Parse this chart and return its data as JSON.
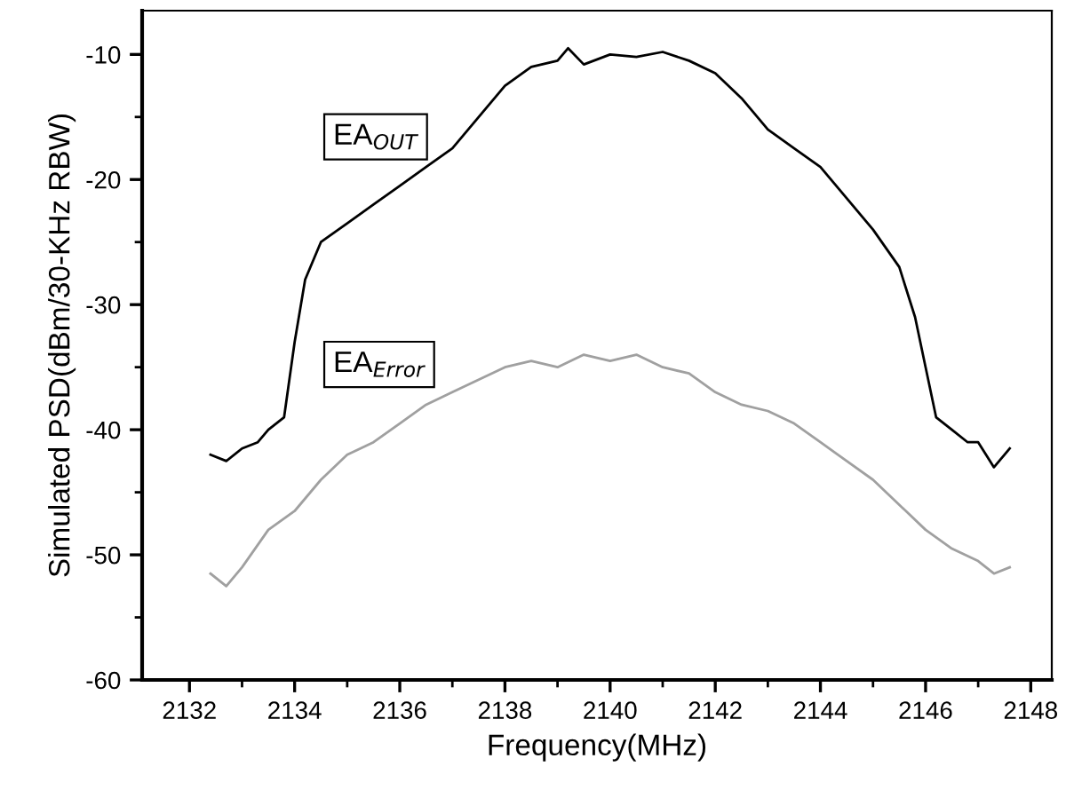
{
  "chart_data": {
    "type": "line",
    "xlabel": "Frequency(MHz)",
    "ylabel": "Simulated PSD(dBm/30-KHz RBW)",
    "xlim": [
      2131.1,
      2148.4
    ],
    "xticks": [
      2132,
      2134,
      2136,
      2138,
      2140,
      2142,
      2144,
      2146,
      2148
    ],
    "ylim": [
      -60,
      -6.5
    ],
    "yticks": [
      -60,
      -50,
      -40,
      -30,
      -20,
      -10
    ],
    "grid": false,
    "legend": false,
    "marker": "none",
    "line_style": "solid",
    "series": [
      {
        "name": "EA$_{OUT}$",
        "color": "#000000",
        "x": [
          2132.4,
          2132.7,
          2133,
          2133.3,
          2133.5,
          2133.8,
          2134,
          2134.2,
          2134.5,
          2135,
          2135.5,
          2136,
          2136.5,
          2137,
          2137.5,
          2138,
          2138.5,
          2139,
          2139.2,
          2139.5,
          2140,
          2140.5,
          2141,
          2141.5,
          2142,
          2142.5,
          2143,
          2143.5,
          2144,
          2144.5,
          2145,
          2145.5,
          2145.8,
          2146,
          2146.2,
          2146.5,
          2146.8,
          2147,
          2147.3,
          2147.6
        ],
        "values": [
          -42,
          -42.5,
          -41.5,
          -41,
          -40,
          -39,
          -33,
          -28,
          -25,
          -23.5,
          -22,
          -20.5,
          -19,
          -17.5,
          -15,
          -12.5,
          -11,
          -10.5,
          -9.5,
          -10.8,
          -10,
          -10.2,
          -9.8,
          -10.5,
          -11.5,
          -13.5,
          -16,
          -17.5,
          -19,
          -21.5,
          -24,
          -27,
          -31,
          -35,
          -39,
          -40,
          -41,
          -41,
          -43,
          -41.5
        ]
      },
      {
        "name": "EA$_{Error}$",
        "color": "#a0a0a0",
        "x": [
          2132.4,
          2132.7,
          2133,
          2133.5,
          2134,
          2134.5,
          2135,
          2135.5,
          2136,
          2136.5,
          2137,
          2137.5,
          2138,
          2138.5,
          2139,
          2139.5,
          2140,
          2140.5,
          2141,
          2141.5,
          2142,
          2142.5,
          2143,
          2143.5,
          2144,
          2144.5,
          2145,
          2145.5,
          2146,
          2146.5,
          2147,
          2147.3,
          2147.6
        ],
        "values": [
          -51.5,
          -52.5,
          -51,
          -48,
          -46.5,
          -44,
          -42,
          -41,
          -39.5,
          -38,
          -37,
          -36,
          -35,
          -34.5,
          -35,
          -34,
          -34.5,
          -34,
          -35,
          -35.5,
          -37,
          -38,
          -38.5,
          -39.5,
          -41,
          -42.5,
          -44,
          -46,
          -48,
          -49.5,
          -50.5,
          -51.5,
          -51
        ]
      }
    ]
  }
}
